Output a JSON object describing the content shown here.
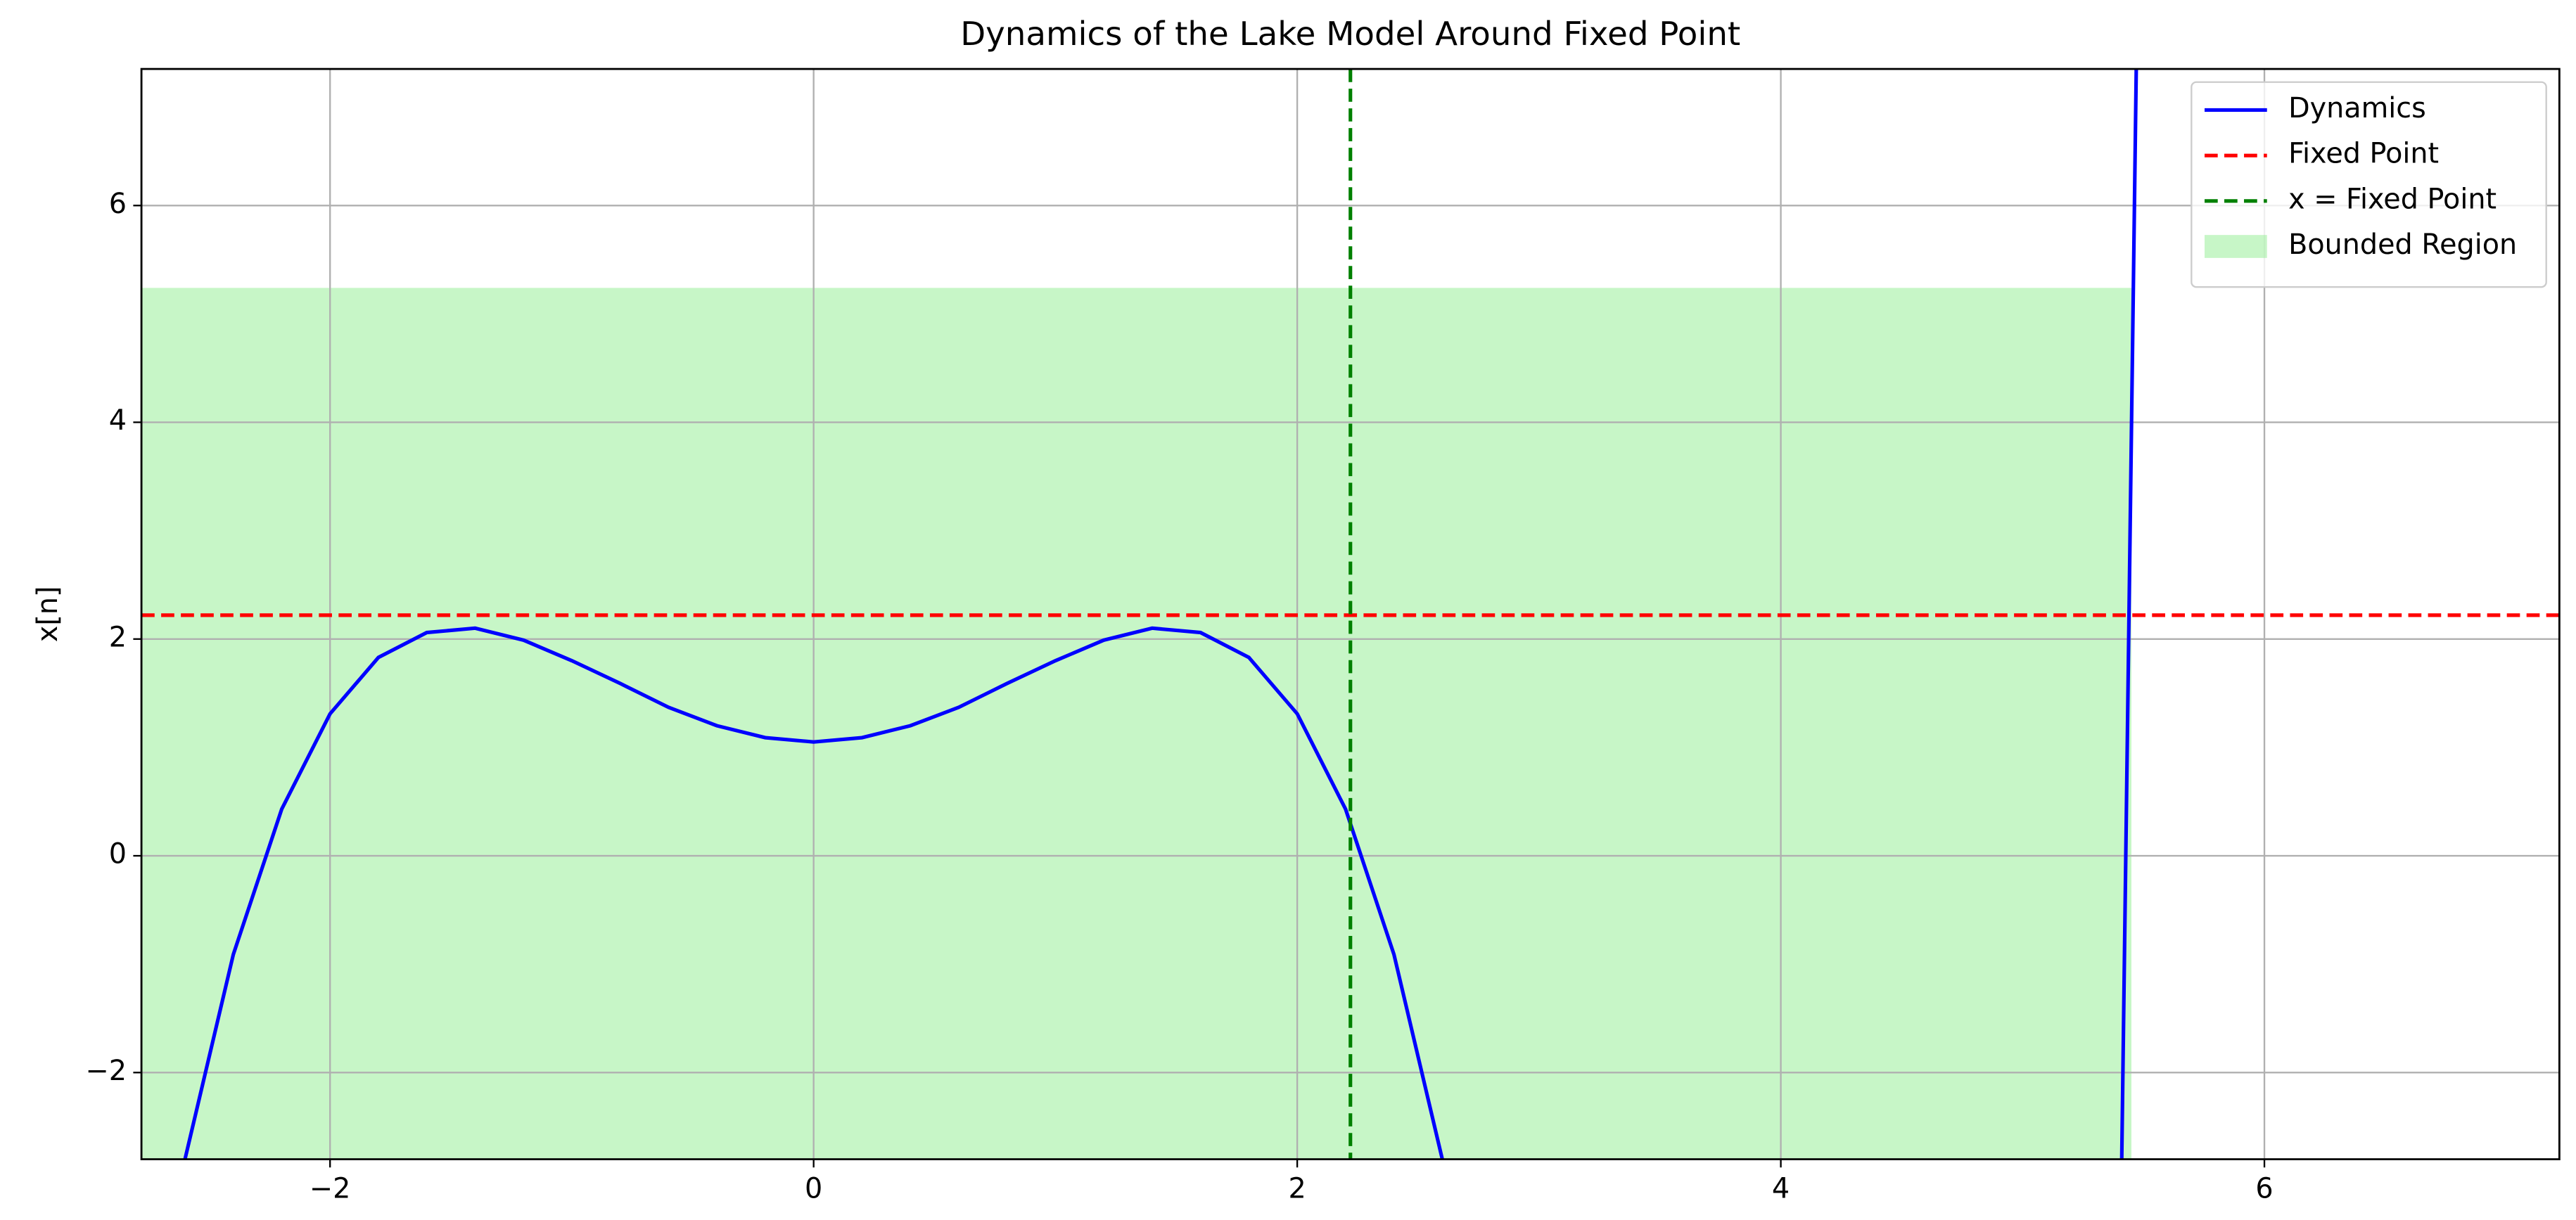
{
  "chart_data": {
    "type": "line",
    "title": "Dynamics of the Lake Model Around Fixed Point",
    "y_label": "x[n]",
    "x": [
      -2.6,
      -2.4,
      -2.2,
      -2.0,
      -1.8,
      -1.6,
      -1.4,
      -1.2,
      -1.0,
      -0.8,
      -0.6,
      -0.4,
      -0.2,
      0.0,
      0.2,
      0.4,
      0.6,
      0.8,
      1.0,
      1.2,
      1.4,
      1.6,
      1.8,
      2.0,
      2.2,
      2.4,
      2.6,
      4.0,
      5.41,
      5.44,
      5.47
    ],
    "series": [
      {
        "name": "Dynamics",
        "color": "#0000ff",
        "values": [
          -2.8,
          -0.91,
          0.43,
          1.31,
          1.83,
          2.06,
          2.1,
          1.99,
          1.8,
          1.59,
          1.37,
          1.2,
          1.09,
          1.05,
          1.09,
          1.2,
          1.37,
          1.59,
          1.8,
          1.99,
          2.1,
          2.06,
          1.83,
          1.31,
          0.43,
          -0.91,
          -2.8,
          null,
          -2.8,
          2.22,
          7.26
        ]
      }
    ],
    "hlines": [
      {
        "name": "Fixed Point",
        "color": "#ff0000",
        "value": 2.22
      }
    ],
    "vlines": [
      {
        "name": "x = Fixed Point",
        "color": "#008000",
        "value": 2.22
      }
    ],
    "regions": [
      {
        "name": "Bounded Region",
        "color": "#90ee90",
        "x": [
          -2.78,
          5.45
        ],
        "y": [
          -2.8,
          5.24
        ]
      }
    ],
    "xlim": [
      -2.78,
      7.22
    ],
    "ylim": [
      -2.8,
      7.26
    ],
    "xticks": [
      {
        "value": -2,
        "label": "−2"
      },
      0,
      2,
      4,
      6
    ],
    "yticks": [
      {
        "value": -2,
        "label": "−2"
      },
      0,
      2,
      4,
      6
    ],
    "grid": true,
    "legend": "upper right"
  }
}
